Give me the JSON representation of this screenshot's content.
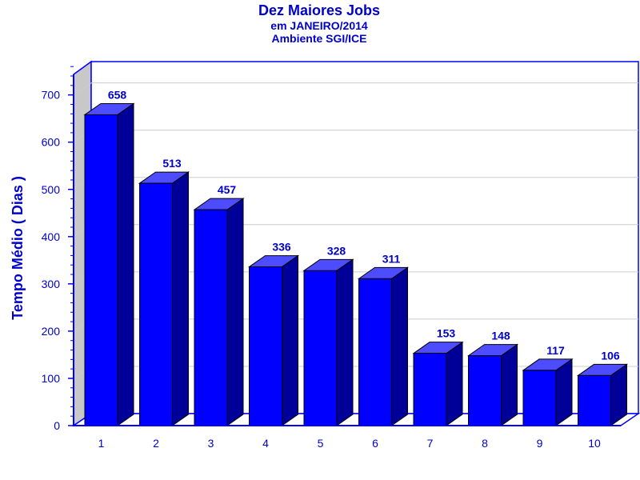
{
  "chart_data": {
    "type": "bar",
    "title": "Dez Maiores Jobs",
    "subtitle_lines": [
      "em JANEIRO/2014",
      "Ambiente SGI/ICE"
    ],
    "xlabel": "",
    "ylabel": "Tempo Médio ( Dias )",
    "categories": [
      "1",
      "2",
      "3",
      "4",
      "5",
      "6",
      "7",
      "8",
      "9",
      "10"
    ],
    "values": [
      658,
      513,
      457,
      336,
      328,
      311,
      153,
      148,
      117,
      106
    ],
    "ylim": [
      0,
      780
    ],
    "yticks": [
      0,
      100,
      200,
      300,
      400,
      500,
      600,
      700
    ],
    "grid": true,
    "legend": "none",
    "style": "3d",
    "colors": {
      "text": "#0000cc",
      "bar_front": "#0000ff",
      "bar_side": "#000099",
      "bar_top": "#4d4dff",
      "grid": "#cccccc",
      "axis": "#0000ff",
      "wall": "#c8c8c8"
    }
  }
}
